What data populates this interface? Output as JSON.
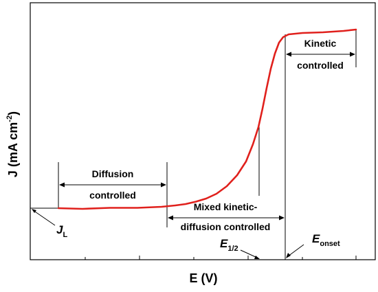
{
  "chart_data": {
    "type": "line",
    "title": "",
    "xlabel": "E (V)",
    "ylabel": "J (mA cm",
    "ylabel_exp": "-2",
    "ylabel_close": ")",
    "x_ticks_labeled": false,
    "y_ticks_labeled": false,
    "series": [
      {
        "color": "#e0201c",
        "points": [
          [
            85,
            303
          ],
          [
            120,
            304
          ],
          [
            160,
            302.5
          ],
          [
            200,
            302.5
          ],
          [
            235,
            301
          ],
          [
            255,
            299
          ],
          [
            270,
            297
          ],
          [
            285,
            293.5
          ],
          [
            300,
            289
          ],
          [
            315,
            282
          ],
          [
            330,
            271
          ],
          [
            345,
            255
          ],
          [
            358,
            235
          ],
          [
            368,
            210
          ],
          [
            376,
            185
          ],
          [
            382,
            158
          ],
          [
            388,
            128
          ],
          [
            394,
            100
          ],
          [
            400,
            78
          ],
          [
            406,
            62
          ],
          [
            412,
            54
          ],
          [
            420,
            50
          ],
          [
            440,
            48
          ],
          [
            470,
            47
          ],
          [
            500,
            45
          ],
          [
            518,
            43
          ]
        ]
      }
    ],
    "regions": [
      {
        "name": "diffusion",
        "line1": "Diffusion",
        "line2": "controlled"
      },
      {
        "name": "mixed",
        "line1": "Mixed kinetic-",
        "line2": "diffusion controlled"
      },
      {
        "name": "kinetic",
        "line1": "Kinetic",
        "line2": "controlled"
      }
    ],
    "markers": {
      "jl": {
        "symbol": "J",
        "subscript": "L"
      },
      "e_half": {
        "symbol": "E",
        "subscript": "1/2"
      },
      "e_onset": {
        "symbol": "E",
        "subscript": "onset"
      }
    }
  }
}
